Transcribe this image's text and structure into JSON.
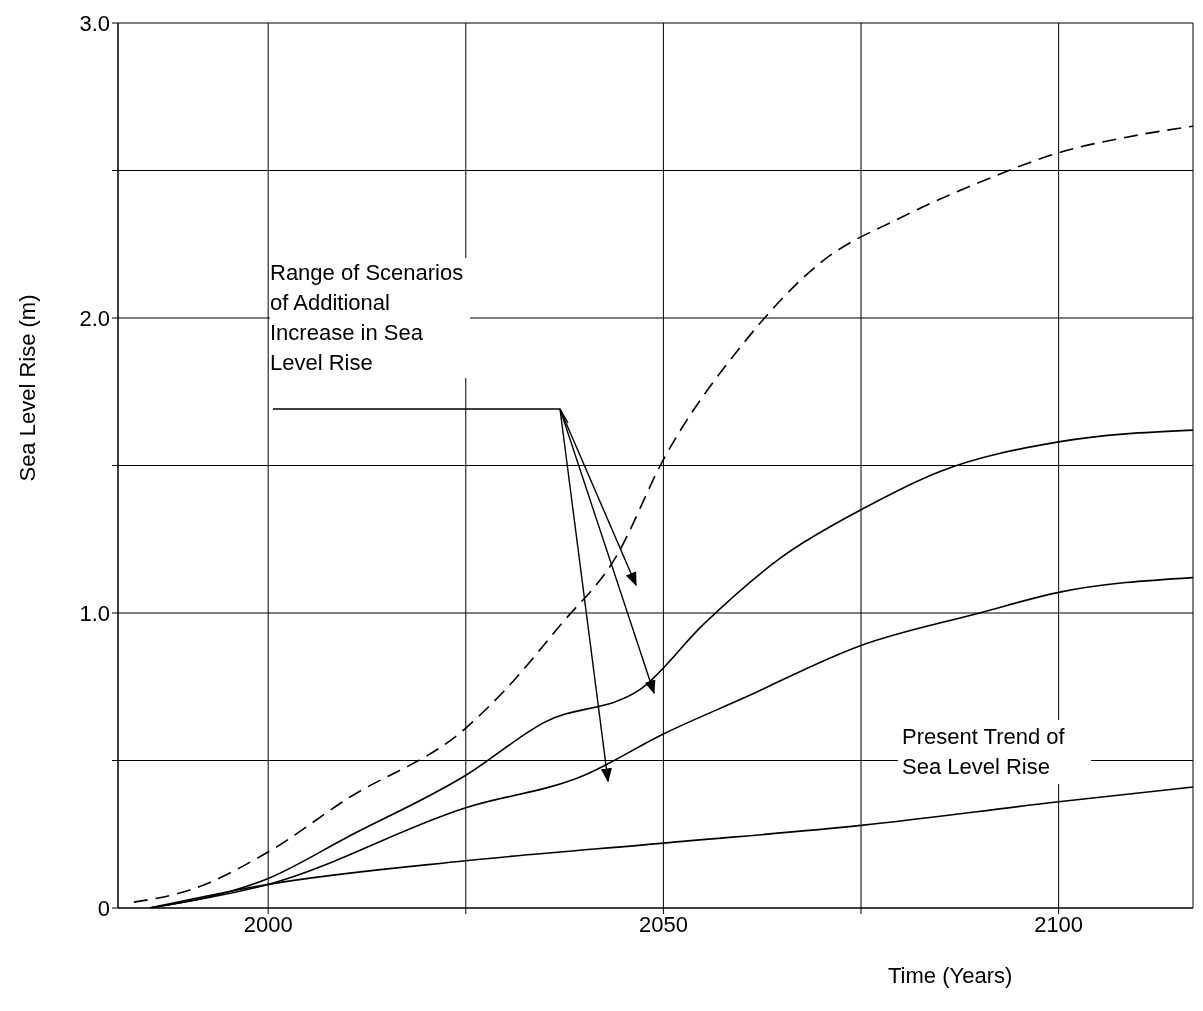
{
  "chart_data": {
    "type": "line",
    "xlabel": "Time (Years)",
    "ylabel": "Sea Level Rise (m)",
    "xlim": [
      1981,
      2117
    ],
    "ylim": [
      0,
      3.0
    ],
    "xticks": [
      2000,
      {
        "value": 2025,
        "label": null
      },
      2050,
      {
        "value": 2075,
        "label": null
      },
      2100
    ],
    "yticks": [
      0,
      {
        "value": 0.5,
        "label": null
      },
      {
        "value": 1.0,
        "label": "1.0"
      },
      {
        "value": 1.5,
        "label": null
      },
      {
        "value": 2.0,
        "label": "2.0"
      },
      {
        "value": 2.5,
        "label": null
      },
      {
        "value": 3.0,
        "label": "3.0"
      }
    ],
    "grid": true,
    "marker": "none",
    "annotations": [
      "Range of Scenarios of Additional Increase in Sea Level Rise",
      "Present Trend of Sea Level Rise"
    ],
    "series": [
      {
        "color": "#000000",
        "line_style": "dashed",
        "x": [
          1983,
          1990,
          2000,
          2010,
          2025,
          2030,
          2037,
          2044,
          2050,
          2060,
          2070,
          2080,
          2090,
          2100,
          2110,
          2117
        ],
        "values": [
          0.02,
          0.06,
          0.19,
          0.37,
          0.61,
          0.74,
          0.96,
          1.19,
          1.52,
          1.91,
          2.19,
          2.34,
          2.46,
          2.56,
          2.62,
          2.65
        ]
      },
      {
        "color": "#000000",
        "line_style": "solid",
        "x": [
          1985,
          2000,
          2010,
          2025,
          2035,
          2047,
          2055,
          2065,
          2075,
          2085,
          2100,
          2117
        ],
        "values": [
          0,
          0.1,
          0.24,
          0.45,
          0.63,
          0.74,
          0.96,
          1.19,
          1.35,
          1.48,
          1.58,
          1.62
        ]
      },
      {
        "color": "#000000",
        "line_style": "solid",
        "x": [
          1985,
          2000,
          2025,
          2040,
          2050,
          2060,
          2075,
          2090,
          2100,
          2117
        ],
        "values": [
          0,
          0.08,
          0.34,
          0.45,
          0.59,
          0.71,
          0.89,
          1.0,
          1.07,
          1.12
        ]
      },
      {
        "color": "#000000",
        "line_style": "solid",
        "x": [
          1985,
          2000,
          2025,
          2050,
          2075,
          2100,
          2117
        ],
        "values": [
          0,
          0.08,
          0.16,
          0.22,
          0.28,
          0.36,
          0.41
        ]
      }
    ]
  }
}
